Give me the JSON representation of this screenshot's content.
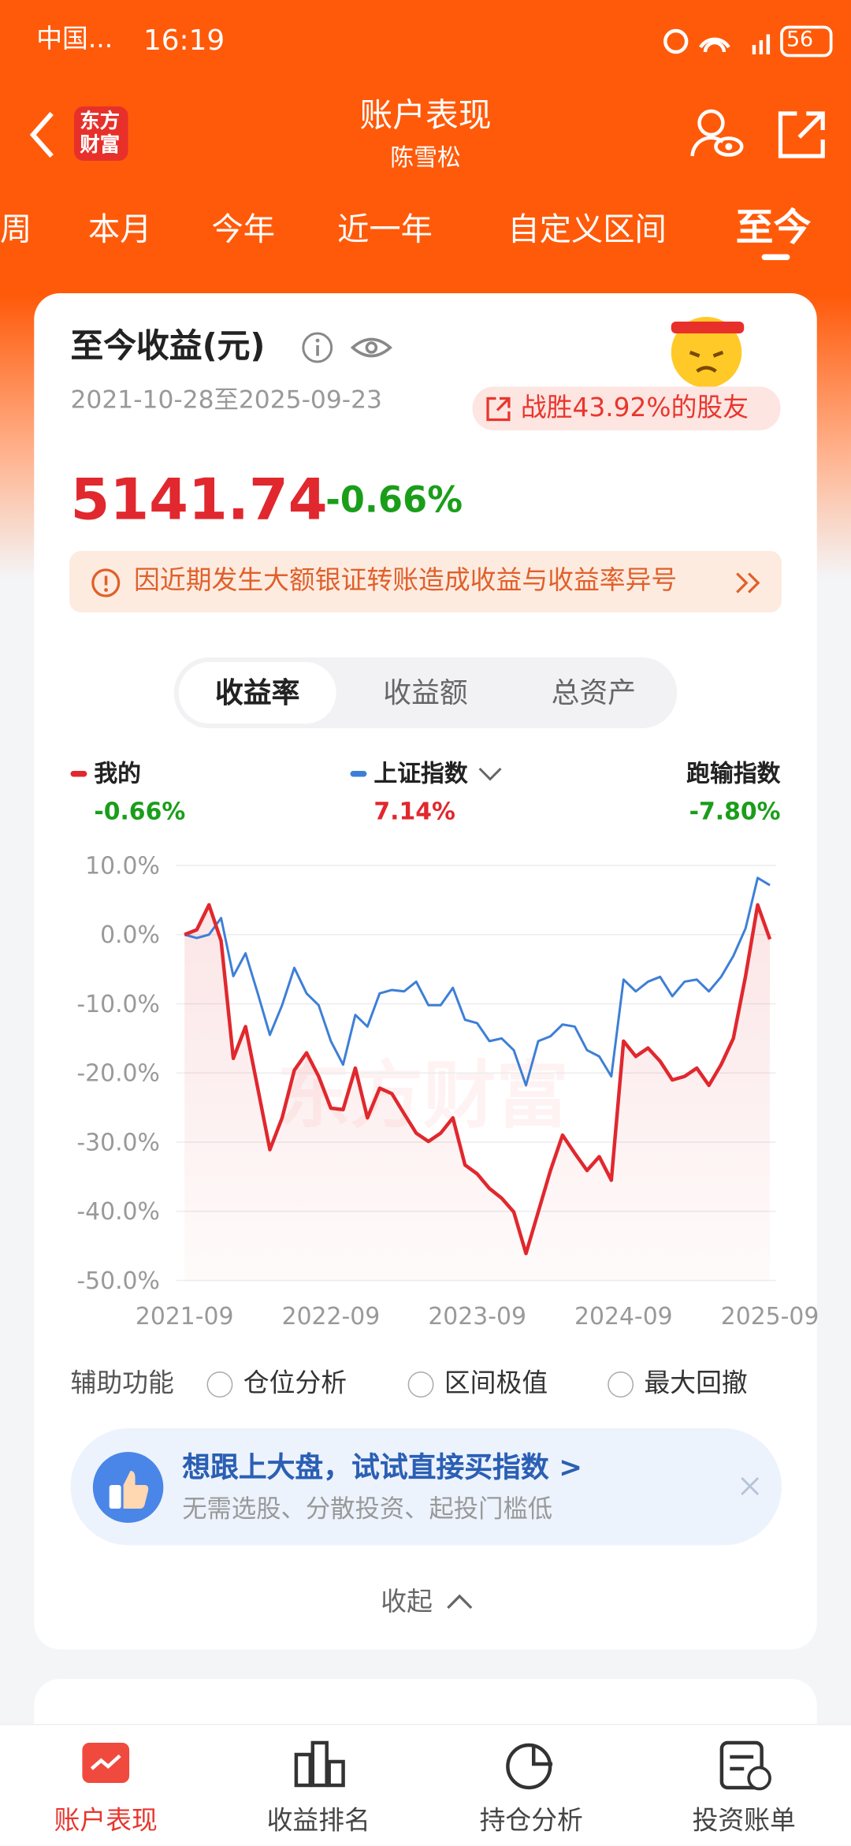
{
  "status_bar": {
    "carrier": "中国...",
    "time": "16:19",
    "battery": "56"
  },
  "header": {
    "logo": [
      "东方",
      "财富"
    ],
    "title": "账户表现",
    "subtitle": "陈雪松"
  },
  "tabs": {
    "items": [
      "周",
      "本月",
      "今年",
      "近一年",
      "自定义区间",
      "至今"
    ],
    "active": 5
  },
  "card": {
    "title": "至今收益(元)",
    "date_range": "2021-10-28至2025-09-23",
    "badge": "战胜43.92%的股友",
    "amount": "5141.74",
    "return": "-0.66%",
    "notice": "因近期发生大额银证转账造成收益与收益率异号",
    "segments": [
      "收益率",
      "收益额",
      "总资产"
    ],
    "active_segment": 0
  },
  "chart_data": {
    "type": "line",
    "watermark": "东方财富",
    "x": [
      "2021-09",
      "2021-10",
      "2021-11",
      "2021-12",
      "2022-01",
      "2022-02",
      "2022-03",
      "2022-04",
      "2022-05",
      "2022-06",
      "2022-07",
      "2022-08",
      "2022-09",
      "2022-10",
      "2022-11",
      "2022-12",
      "2023-01",
      "2023-02",
      "2023-03",
      "2023-04",
      "2023-05",
      "2023-06",
      "2023-07",
      "2023-08",
      "2023-09",
      "2023-10",
      "2023-11",
      "2023-12",
      "2024-01",
      "2024-02",
      "2024-03",
      "2024-04",
      "2024-05",
      "2024-06",
      "2024-07",
      "2024-08",
      "2024-09",
      "2024-10",
      "2024-11",
      "2024-12",
      "2025-01",
      "2025-02",
      "2025-03",
      "2025-04",
      "2025-05",
      "2025-06",
      "2025-07",
      "2025-08",
      "2025-09"
    ],
    "series": [
      {
        "name": "我的",
        "color": "#e0282e",
        "return": "-0.66%",
        "fill": true,
        "values": [
          0,
          0.7,
          4.3,
          -0.9,
          -17.9,
          -13.3,
          -22.2,
          -31.1,
          -26.5,
          -19.6,
          -17.1,
          -20.5,
          -25.1,
          -25.3,
          -19.3,
          -26.5,
          -22.2,
          -23,
          -25.9,
          -28.7,
          -29.9,
          -28.7,
          -26.5,
          -33.3,
          -34.6,
          -36.7,
          -38.1,
          -40.1,
          -46.1,
          -40.1,
          -34.1,
          -29,
          -31.6,
          -34.1,
          -32.1,
          -35.5,
          -15.4,
          -17.6,
          -16.4,
          -18.3,
          -21,
          -20.5,
          -19.3,
          -21.8,
          -18.8,
          -15,
          -6,
          4.3,
          -0.66
        ]
      },
      {
        "name": "上证指数",
        "color": "#3d7fd6",
        "return": "7.14%",
        "values": [
          0,
          -0.5,
          0,
          2.4,
          -6,
          -2.7,
          -8.5,
          -14.5,
          -10.2,
          -4.8,
          -8.5,
          -10.2,
          -15.4,
          -18.8,
          -11.6,
          -13.3,
          -8.5,
          -8,
          -8.2,
          -6.8,
          -10.2,
          -10.2,
          -7.7,
          -12.3,
          -12.8,
          -15.4,
          -15,
          -16.7,
          -21.8,
          -15.4,
          -14.7,
          -13,
          -13.3,
          -16.7,
          -17.6,
          -20.5,
          -6.5,
          -8.2,
          -6.8,
          -6.1,
          -8.9,
          -6.8,
          -6.5,
          -8.2,
          -6.1,
          -3.1,
          0.9,
          8.2,
          7.14
        ]
      }
    ],
    "underperformance": {
      "label": "跑输指数",
      "value": "-7.80%"
    },
    "ylim": [
      -50,
      10
    ],
    "yticks": [
      {
        "value": 10,
        "label": "10.0%"
      },
      {
        "value": 0,
        "label": "0.0%"
      },
      {
        "value": -10,
        "label": "-10.0%"
      },
      {
        "value": -20,
        "label": "-20.0%"
      },
      {
        "value": -30,
        "label": "-30.0%"
      },
      {
        "value": -40,
        "label": "-40.0%"
      },
      {
        "value": -50,
        "label": "-50.0%"
      }
    ],
    "xticks": [
      "2021-09",
      "2022-09",
      "2023-09",
      "2024-09",
      "2025-09"
    ],
    "grid": true
  },
  "aux": {
    "label": "辅助功能",
    "options": [
      "仓位分析",
      "区间极值",
      "最大回撤"
    ]
  },
  "promo": {
    "title": "想跟上大盘，试试直接买指数 >",
    "subtitle": "无需选股、分散投资、起投门槛低"
  },
  "collapse": "收起",
  "bottom_nav": {
    "items": [
      "账户表现",
      "收益排名",
      "持仓分析",
      "投资账单"
    ],
    "active": 0
  }
}
